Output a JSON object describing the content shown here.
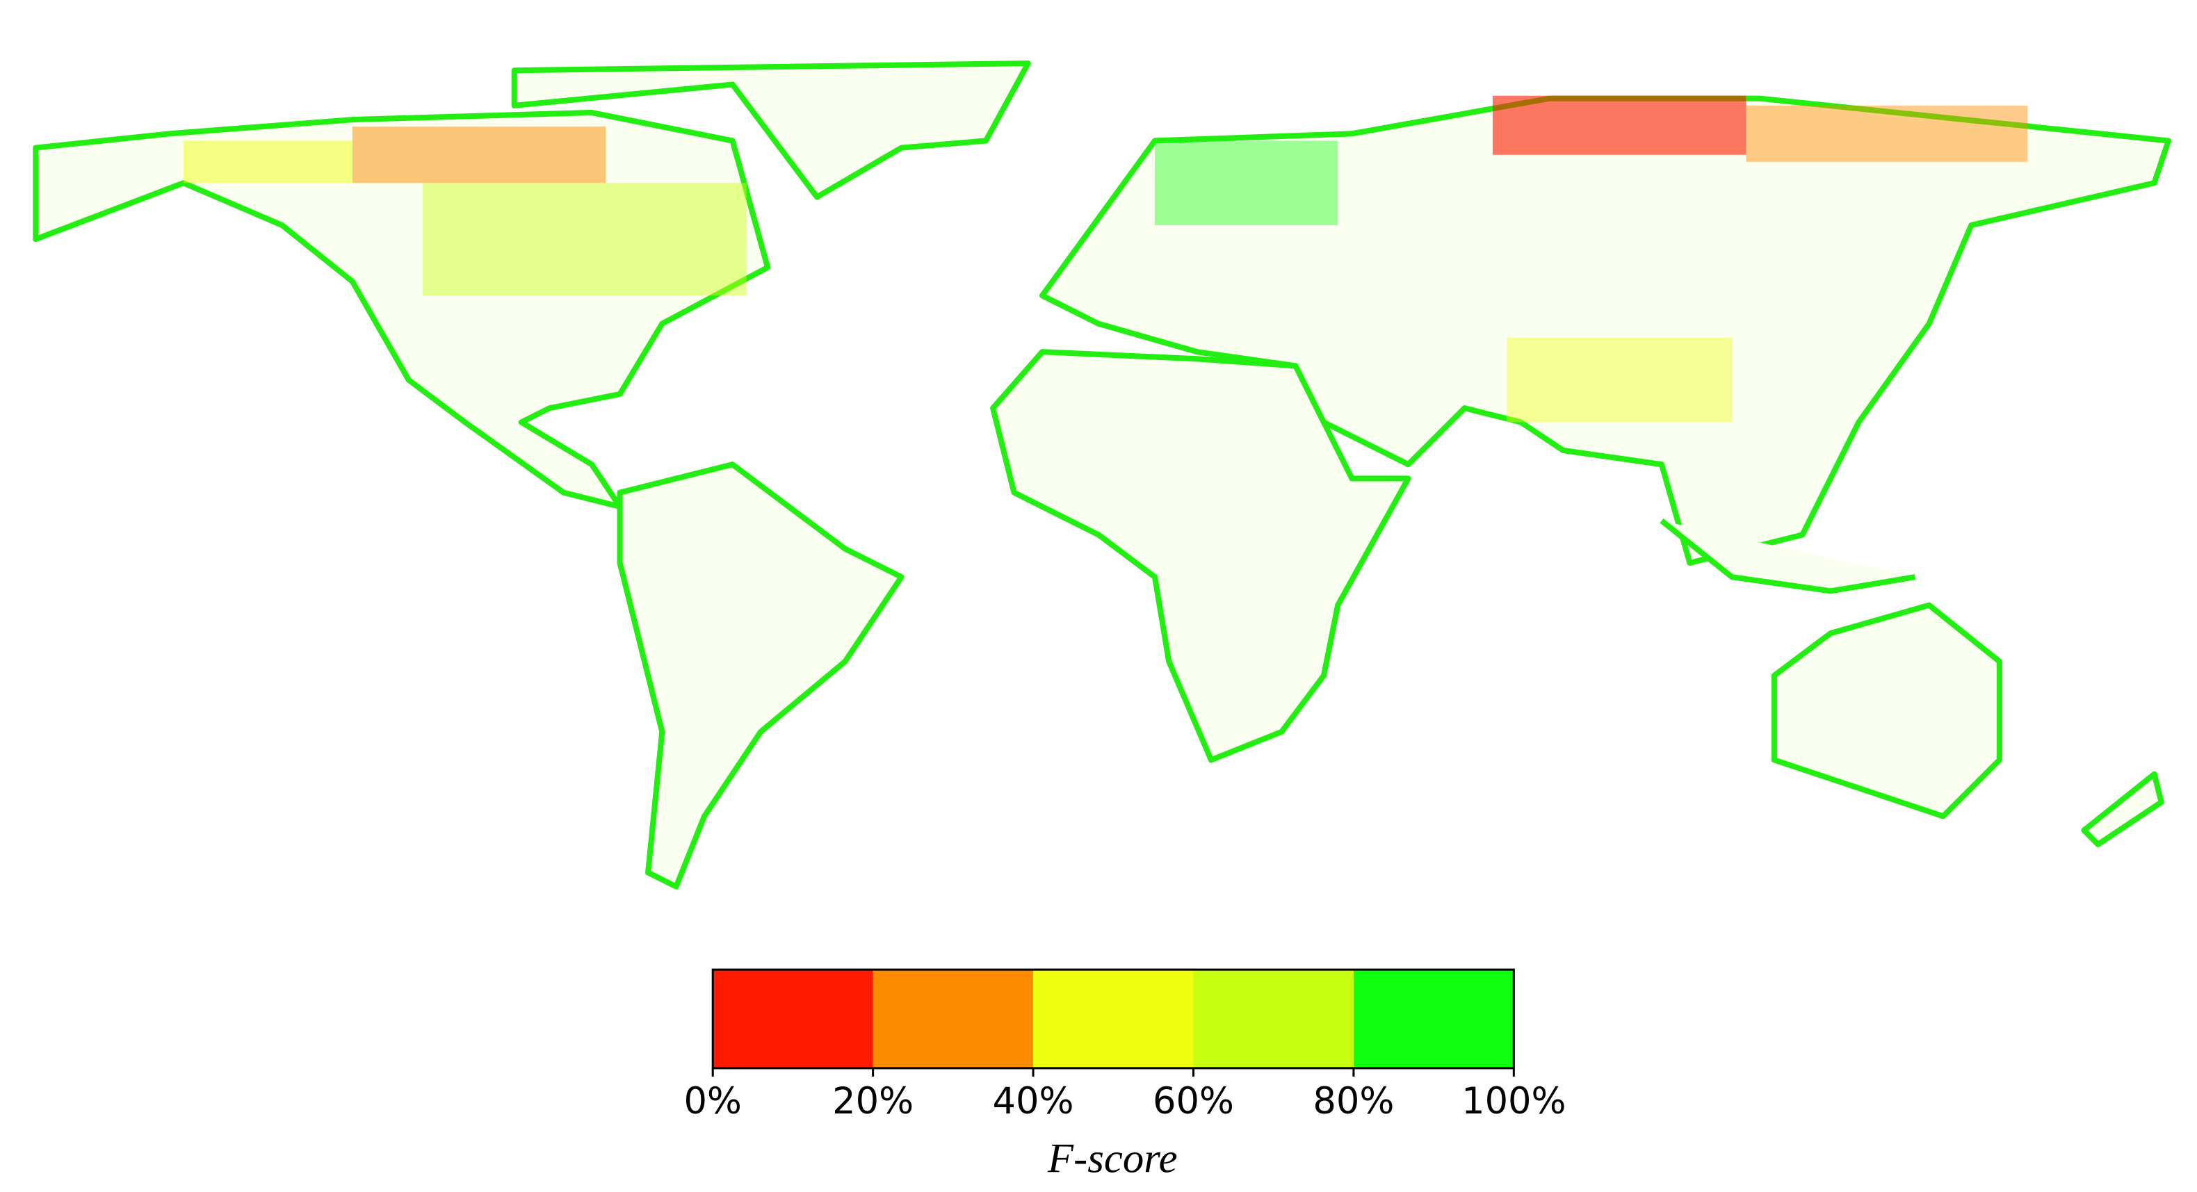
{
  "colorbar": {
    "ticks": [
      {
        "value": 0,
        "label": "0%"
      },
      {
        "value": 20,
        "label": "20%"
      },
      {
        "value": 40,
        "label": "40%"
      },
      {
        "value": 60,
        "label": "60%"
      },
      {
        "value": 80,
        "label": "80%"
      },
      {
        "value": 100,
        "label": "100%"
      }
    ],
    "colors": [
      "#ff1a00",
      "#ff8c00",
      "#f0ff10",
      "#c8ff10",
      "#10ff10"
    ],
    "label": "F-score"
  }
}
